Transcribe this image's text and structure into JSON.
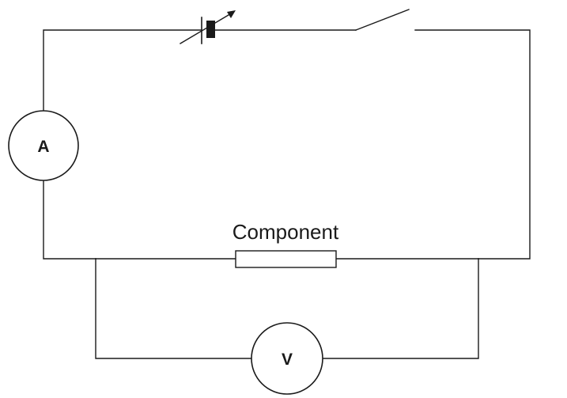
{
  "diagram": {
    "ammeter_label": "A",
    "voltmeter_label": "V",
    "component_label": "Component",
    "wire_color": "#1a1a1a",
    "background_color": "#ffffff"
  }
}
